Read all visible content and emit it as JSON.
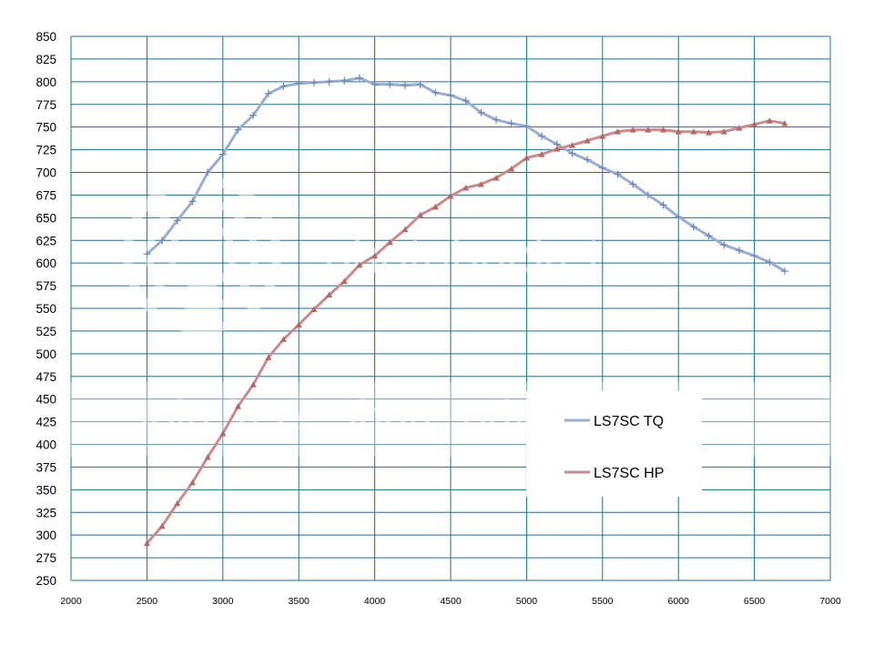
{
  "watermark": {
    "brand": "photobucket",
    "tagline": "Join free. Share privately."
  },
  "chart_data": {
    "type": "line",
    "title": "",
    "xlabel": "",
    "ylabel": "",
    "xlim": [
      2000,
      7000
    ],
    "ylim": [
      250,
      850
    ],
    "x_ticks": [
      2000,
      2500,
      3000,
      3500,
      4000,
      4500,
      5000,
      5500,
      6000,
      6500,
      7000
    ],
    "y_ticks": [
      250,
      275,
      300,
      325,
      350,
      375,
      400,
      425,
      450,
      475,
      500,
      525,
      550,
      575,
      600,
      625,
      650,
      675,
      700,
      725,
      750,
      775,
      800,
      825,
      850
    ],
    "grid": true,
    "legend_position": "right",
    "series": [
      {
        "name": "LS7SC TQ",
        "color": "#9aaed0",
        "marker": "plus",
        "points": [
          [
            2500,
            610
          ],
          [
            2600,
            625
          ],
          [
            2700,
            647
          ],
          [
            2800,
            668
          ],
          [
            2900,
            700
          ],
          [
            3000,
            720
          ],
          [
            3100,
            747
          ],
          [
            3200,
            763
          ],
          [
            3300,
            787
          ],
          [
            3400,
            795
          ],
          [
            3500,
            798
          ],
          [
            3600,
            799
          ],
          [
            3700,
            800
          ],
          [
            3800,
            801
          ],
          [
            3900,
            804
          ],
          [
            4000,
            797
          ],
          [
            4100,
            797
          ],
          [
            4200,
            796
          ],
          [
            4300,
            797
          ],
          [
            4400,
            788
          ],
          [
            4500,
            785
          ],
          [
            4600,
            779
          ],
          [
            4700,
            766
          ],
          [
            4800,
            758
          ],
          [
            4900,
            754
          ],
          [
            5000,
            751
          ],
          [
            5100,
            740
          ],
          [
            5200,
            731
          ],
          [
            5300,
            721
          ],
          [
            5400,
            714
          ],
          [
            5500,
            705
          ],
          [
            5600,
            698
          ],
          [
            5700,
            687
          ],
          [
            5800,
            675
          ],
          [
            5900,
            664
          ],
          [
            6000,
            651
          ],
          [
            6100,
            640
          ],
          [
            6200,
            630
          ],
          [
            6300,
            620
          ],
          [
            6400,
            614
          ],
          [
            6500,
            608
          ],
          [
            6600,
            601
          ],
          [
            6700,
            591
          ]
        ]
      },
      {
        "name": "LS7SC HP",
        "color": "#c98b8b",
        "marker": "triangle",
        "points": [
          [
            2500,
            291
          ],
          [
            2600,
            310
          ],
          [
            2700,
            335
          ],
          [
            2800,
            358
          ],
          [
            2900,
            386
          ],
          [
            3000,
            412
          ],
          [
            3100,
            442
          ],
          [
            3200,
            466
          ],
          [
            3300,
            496
          ],
          [
            3400,
            516
          ],
          [
            3500,
            532
          ],
          [
            3600,
            549
          ],
          [
            3700,
            565
          ],
          [
            3800,
            580
          ],
          [
            3900,
            598
          ],
          [
            4000,
            608
          ],
          [
            4100,
            623
          ],
          [
            4200,
            637
          ],
          [
            4300,
            653
          ],
          [
            4400,
            662
          ],
          [
            4500,
            674
          ],
          [
            4600,
            683
          ],
          [
            4700,
            687
          ],
          [
            4800,
            694
          ],
          [
            4900,
            704
          ],
          [
            5000,
            716
          ],
          [
            5100,
            720
          ],
          [
            5200,
            726
          ],
          [
            5300,
            730
          ],
          [
            5400,
            735
          ],
          [
            5500,
            740
          ],
          [
            5600,
            745
          ],
          [
            5700,
            747
          ],
          [
            5800,
            747
          ],
          [
            5900,
            747
          ],
          [
            6000,
            745
          ],
          [
            6100,
            745
          ],
          [
            6200,
            744
          ],
          [
            6300,
            745
          ],
          [
            6400,
            749
          ],
          [
            6500,
            753
          ],
          [
            6600,
            757
          ],
          [
            6700,
            754
          ]
        ]
      }
    ]
  }
}
